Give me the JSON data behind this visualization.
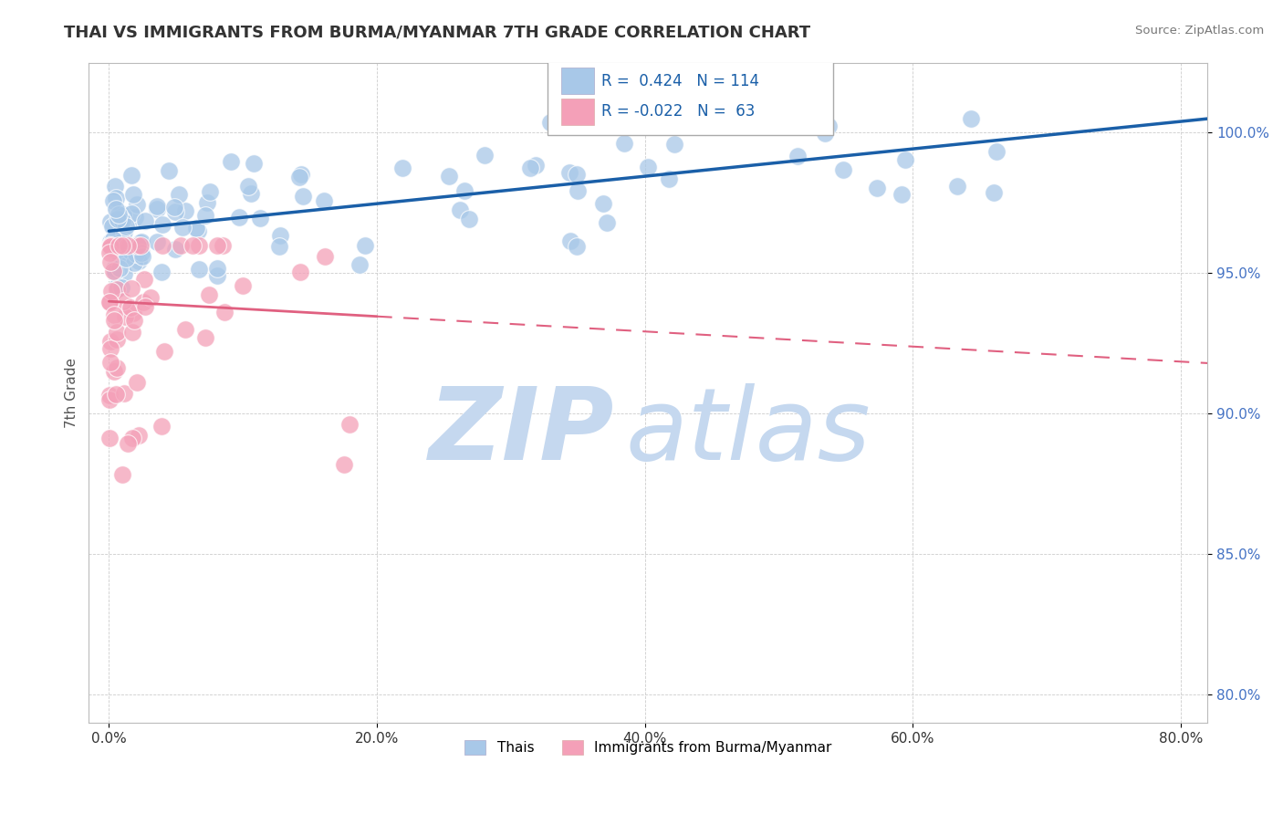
{
  "title": "THAI VS IMMIGRANTS FROM BURMA/MYANMAR 7TH GRADE CORRELATION CHART",
  "source": "Source: ZipAtlas.com",
  "xlabel_ticks": [
    "0.0%",
    "20.0%",
    "40.0%",
    "60.0%",
    "80.0%"
  ],
  "xlabel_values": [
    0.0,
    20.0,
    40.0,
    60.0,
    80.0
  ],
  "ylabel": "7th Grade",
  "ylim": [
    79.0,
    102.5
  ],
  "xlim": [
    -1.5,
    82.0
  ],
  "yticks": [
    80.0,
    85.0,
    90.0,
    95.0,
    100.0
  ],
  "ytick_labels": [
    "80.0%",
    "85.0%",
    "90.0%",
    "95.0%",
    "100.0%"
  ],
  "blue_R": 0.424,
  "blue_N": 114,
  "pink_R": -0.022,
  "pink_N": 63,
  "blue_color": "#a8c8e8",
  "pink_color": "#f4a0b8",
  "blue_line_color": "#1a5fa8",
  "pink_line_color": "#e06080",
  "legend_label_blue": "Thais",
  "legend_label_pink": "Immigrants from Burma/Myanmar",
  "blue_trend_x0": 0.0,
  "blue_trend_x1": 82.0,
  "blue_trend_y0": 96.5,
  "blue_trend_y1": 100.5,
  "pink_trend_x0": 0.0,
  "pink_trend_x1": 82.0,
  "pink_trend_y0": 94.0,
  "pink_trend_y1": 91.8,
  "pink_solid_end_x": 20.0,
  "watermark_zip": "ZIP",
  "watermark_atlas": "atlas",
  "watermark_color": "#c5d8ef",
  "background_color": "#ffffff",
  "grid_color": "#cccccc"
}
